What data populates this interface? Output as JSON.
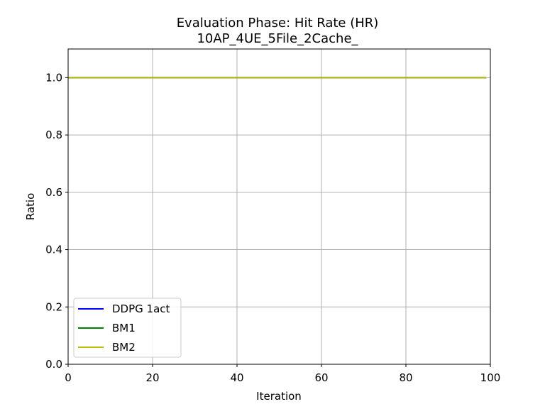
{
  "chart_data": {
    "type": "line",
    "title": "Evaluation Phase: Hit Rate (HR)",
    "subtitle": "10AP_4UE_5File_2Cache_",
    "xlabel": "Iteration",
    "ylabel": "Ratio",
    "xlim": [
      0,
      100
    ],
    "ylim": [
      0,
      1.1
    ],
    "xticks": [
      0,
      20,
      40,
      60,
      80,
      100
    ],
    "yticks": [
      0.0,
      0.2,
      0.4,
      0.6,
      0.8,
      1.0
    ],
    "xtick_labels": [
      "0",
      "20",
      "40",
      "60",
      "80",
      "100"
    ],
    "ytick_labels": [
      "0.0",
      "0.2",
      "0.4",
      "0.6",
      "0.8",
      "1.0"
    ],
    "grid": true,
    "legend_position": "lower-left",
    "x_range": [
      0,
      99
    ],
    "series": [
      {
        "name": "DDPG 1act",
        "color": "#0000ff",
        "value": 1.0
      },
      {
        "name": "BM1",
        "color": "#008000",
        "value": 1.0
      },
      {
        "name": "BM2",
        "color": "#bfbf00",
        "value": 1.0
      }
    ]
  }
}
